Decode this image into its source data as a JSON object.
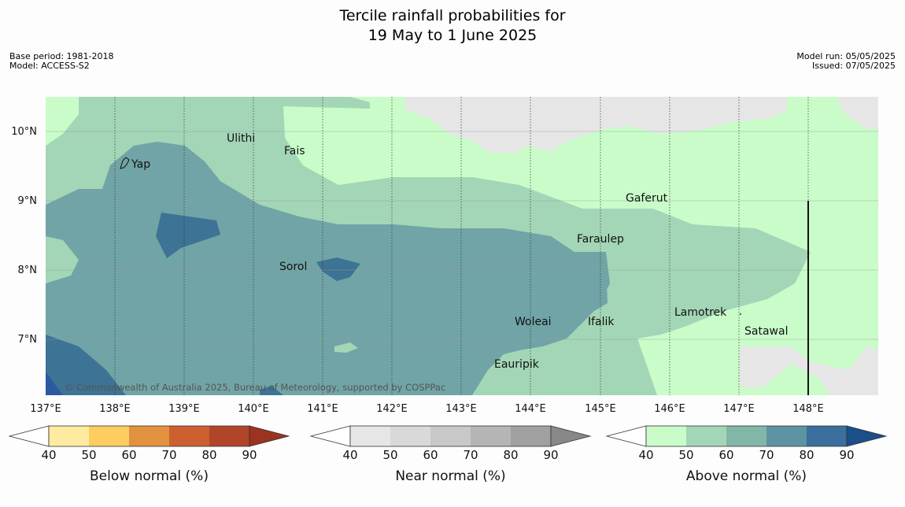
{
  "title_line1": "Tercile rainfall probabilities for",
  "title_line2": "19 May to 1 June 2025",
  "base_period": "Base period: 1981-2018",
  "model": "Model: ACCESS-S2",
  "model_run": "Model run: 05/05/2025",
  "issued": "Issued: 07/05/2025",
  "copyright": "© Commonwealth of Australia 2025, Bureau of Meteorology, supported by COSPPac",
  "lat_labels": [
    "10°N",
    "9°N",
    "8°N",
    "7°N"
  ],
  "lon_labels": [
    "137°E",
    "138°E",
    "139°E",
    "140°E",
    "141°E",
    "142°E",
    "143°E",
    "144°E",
    "145°E",
    "146°E",
    "147°E",
    "148°E"
  ],
  "places": [
    {
      "name": "Yap"
    },
    {
      "name": "Ulithi"
    },
    {
      "name": "Fais"
    },
    {
      "name": "Gaferut"
    },
    {
      "name": "Faraulep"
    },
    {
      "name": "Sorol"
    },
    {
      "name": "Lamotrek"
    },
    {
      "name": "Woleai"
    },
    {
      "name": "Ifalik"
    },
    {
      "name": "Satawal"
    },
    {
      "name": "Eauripik"
    }
  ],
  "colorbars": [
    {
      "title": "Below normal (%)",
      "ticks": [
        "40",
        "50",
        "60",
        "70",
        "80",
        "90"
      ],
      "colors": [
        "#ffffff",
        "#feeb9f",
        "#fecd60",
        "#e2913f",
        "#cc6030",
        "#b0452a",
        "#9c3220"
      ]
    },
    {
      "title": "Near normal (%)",
      "ticks": [
        "40",
        "50",
        "60",
        "70",
        "80",
        "90"
      ],
      "colors": [
        "#ffffff",
        "#e6e6e6",
        "#d9d9d9",
        "#c8c8c8",
        "#b5b5b5",
        "#a0a0a0",
        "#888888"
      ]
    },
    {
      "title": "Above normal (%)",
      "ticks": [
        "40",
        "50",
        "60",
        "70",
        "80",
        "90"
      ],
      "colors": [
        "#ffffff",
        "#c9fcc9",
        "#a3d6b6",
        "#82b6a6",
        "#5d93a3",
        "#3a6f9e",
        "#1b4f87"
      ]
    }
  ]
}
